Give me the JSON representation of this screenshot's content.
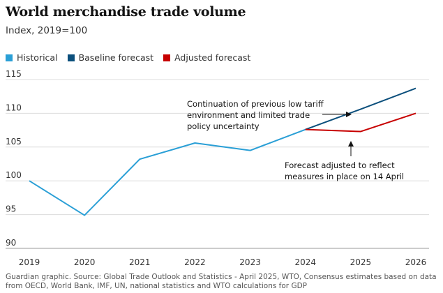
{
  "title": "World merchandise trade volume",
  "subtitle": "Index, 2019=100",
  "legend": [
    {
      "label": "Historical",
      "color": "#2a9fd6"
    },
    {
      "label": "Baseline forecast",
      "color": "#0b4f7c"
    },
    {
      "label": "Adjusted forecast",
      "color": "#c70000"
    }
  ],
  "source": "Guardian graphic. Source: Global Trade Outlook and Statistics - April 2025, WTO, Consensus estimates based on data from OECD, World Bank, IMF, UN, national statistics and WTO calculations for GDP",
  "chart_data": {
    "type": "line",
    "title": "World merchandise trade volume",
    "subtitle": "Index, 2019=100",
    "x_ticks": [
      "2019",
      "2020",
      "2021",
      "2022",
      "2023",
      "2024",
      "2025",
      "2026"
    ],
    "y_ticks": [
      90,
      95,
      100,
      105,
      110,
      115
    ],
    "ylim": [
      90,
      115
    ],
    "grid": true,
    "legend_position": "top-left",
    "series": [
      {
        "name": "Historical",
        "color": "#2a9fd6",
        "x": [
          2019,
          2020,
          2021,
          2022,
          2023,
          2024
        ],
        "values": [
          100.0,
          94.9,
          103.2,
          105.6,
          104.5,
          107.6
        ]
      },
      {
        "name": "Baseline forecast",
        "color": "#0b4f7c",
        "x": [
          2024,
          2025,
          2026
        ],
        "values": [
          107.6,
          110.6,
          113.7
        ]
      },
      {
        "name": "Adjusted forecast",
        "color": "#c70000",
        "x": [
          2024,
          2025,
          2026
        ],
        "values": [
          107.6,
          107.3,
          110.0
        ]
      }
    ],
    "annotations": [
      {
        "lines": [
          "Continuation of previous low tariff",
          "environment and limited trade",
          "policy uncertainty"
        ],
        "points_to": "Baseline forecast"
      },
      {
        "lines": [
          "Forecast adjusted to reflect",
          "measures in place on 14 April"
        ],
        "points_to": "Adjusted forecast"
      }
    ]
  }
}
